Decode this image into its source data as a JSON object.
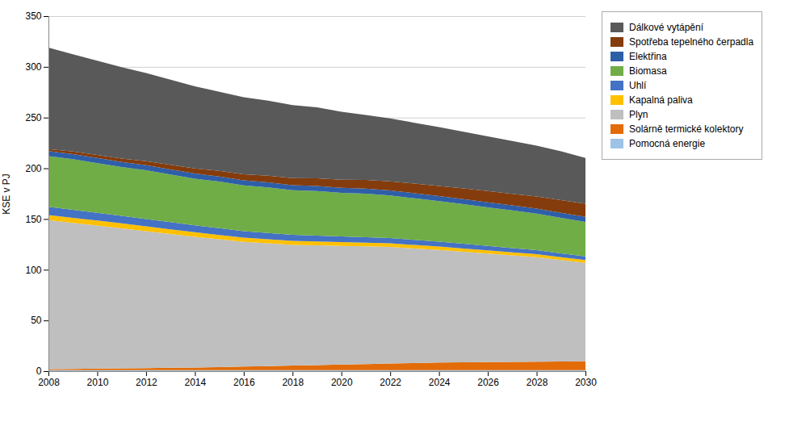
{
  "chart_data": {
    "type": "area",
    "stacked": true,
    "x": [
      2008,
      2009,
      2010,
      2011,
      2012,
      2013,
      2014,
      2015,
      2016,
      2017,
      2018,
      2019,
      2020,
      2021,
      2022,
      2023,
      2024,
      2025,
      2026,
      2027,
      2028,
      2029,
      2030
    ],
    "series": [
      {
        "name": "Pomocná energie",
        "color": "#9DC3E6",
        "values": [
          1.0,
          1.0,
          1.0,
          1.0,
          1.0,
          1.0,
          1.0,
          1.0,
          1.0,
          1.0,
          1.0,
          1.0,
          1.0,
          1.0,
          1.0,
          1.0,
          1.0,
          1.0,
          1.0,
          1.0,
          1.0,
          1.0,
          1.0
        ]
      },
      {
        "name": "Solárně termické kolektory",
        "color": "#E36C09",
        "values": [
          1.0,
          1.2,
          1.5,
          1.8,
          2.0,
          2.3,
          2.5,
          3.0,
          3.5,
          4.0,
          4.5,
          5.0,
          5.5,
          6.0,
          6.5,
          7.0,
          7.5,
          7.8,
          8.0,
          8.2,
          8.4,
          8.6,
          8.8
        ]
      },
      {
        "name": "Plyn",
        "color": "#BFBFBF",
        "values": [
          147,
          144,
          141,
          138,
          135,
          132,
          129,
          126,
          123,
          121,
          119,
          118,
          117,
          116,
          115,
          113,
          111,
          109,
          107,
          105,
          103,
          100,
          97
        ]
      },
      {
        "name": "Kapalná paliva",
        "color": "#FFC000",
        "values": [
          5,
          5,
          5,
          5,
          4.8,
          4.6,
          4.5,
          4.3,
          4.2,
          4.0,
          3.9,
          3.8,
          3.7,
          3.6,
          3.5,
          3.4,
          3.3,
          3.2,
          3.1,
          3.0,
          2.9,
          2.8,
          2.7
        ]
      },
      {
        "name": "Uhlí",
        "color": "#4472C4",
        "values": [
          8,
          7.8,
          7.6,
          7.4,
          7.2,
          7.0,
          6.8,
          6.6,
          6.4,
          6.2,
          6.0,
          5.8,
          5.6,
          5.4,
          5.2,
          5.0,
          4.8,
          4.6,
          4.4,
          4.2,
          4.0,
          3.8,
          3.6
        ]
      },
      {
        "name": "Biomasa",
        "color": "#70AD47",
        "values": [
          50,
          50,
          49,
          48,
          48,
          47,
          46,
          46,
          45,
          45,
          44,
          44,
          43,
          43,
          42,
          41,
          40,
          39,
          38,
          37,
          36,
          35,
          34
        ]
      },
      {
        "name": "Elektřina",
        "color": "#2E5EA8",
        "values": [
          5,
          5,
          5,
          5,
          5,
          5,
          5,
          5,
          5,
          5,
          5,
          5,
          5,
          5,
          5,
          5,
          5,
          5,
          5,
          5,
          5,
          5,
          5
        ]
      },
      {
        "name": "Spotřeba tepelného čerpadla",
        "color": "#843C0C",
        "values": [
          2,
          2.5,
          3,
          3.5,
          4,
          4.5,
          5,
          5.5,
          6,
          6.5,
          7,
          7.5,
          8,
          8.5,
          9,
          9.5,
          10,
          10.5,
          11,
          11.5,
          12,
          12.5,
          13
        ]
      },
      {
        "name": "Dálkové vytápění",
        "color": "#595959",
        "values": [
          100,
          96,
          93,
          90,
          87,
          84,
          81,
          78,
          76,
          74,
          72,
          70,
          67,
          64,
          62,
          60,
          58,
          56,
          54,
          52,
          50,
          48,
          45
        ]
      }
    ],
    "ylabel": "KSE v PJ",
    "xlim": [
      2008,
      2030
    ],
    "xticks": [
      2008,
      2010,
      2012,
      2014,
      2016,
      2018,
      2020,
      2022,
      2024,
      2026,
      2028,
      2030
    ],
    "ylim": [
      0,
      350
    ],
    "yticks": [
      0,
      50,
      100,
      150,
      200,
      250,
      300,
      350
    ],
    "grid": "y",
    "legend": "right"
  }
}
